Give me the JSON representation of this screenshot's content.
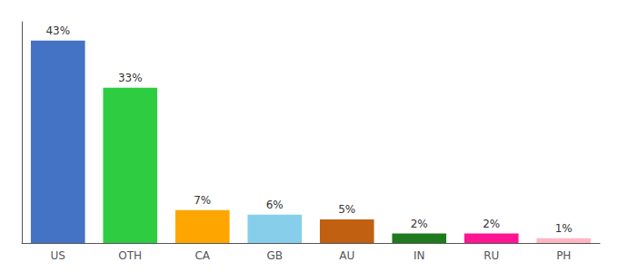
{
  "chart_data": {
    "type": "bar",
    "categories": [
      "US",
      "OTH",
      "CA",
      "GB",
      "AU",
      "IN",
      "RU",
      "PH"
    ],
    "values": [
      43,
      33,
      7,
      6,
      5,
      2,
      2,
      1
    ],
    "value_labels": [
      "43%",
      "33%",
      "7%",
      "6%",
      "5%",
      "2%",
      "2%",
      "1%"
    ],
    "colors": [
      "#4472C4",
      "#2ECC40",
      "#FFA500",
      "#87CEEB",
      "#C06010",
      "#1E7A1E",
      "#FF1493",
      "#FFB6C1"
    ],
    "ylim": [
      0,
      47
    ],
    "data_labels": true,
    "tick_labels": "x",
    "grid": false
  }
}
